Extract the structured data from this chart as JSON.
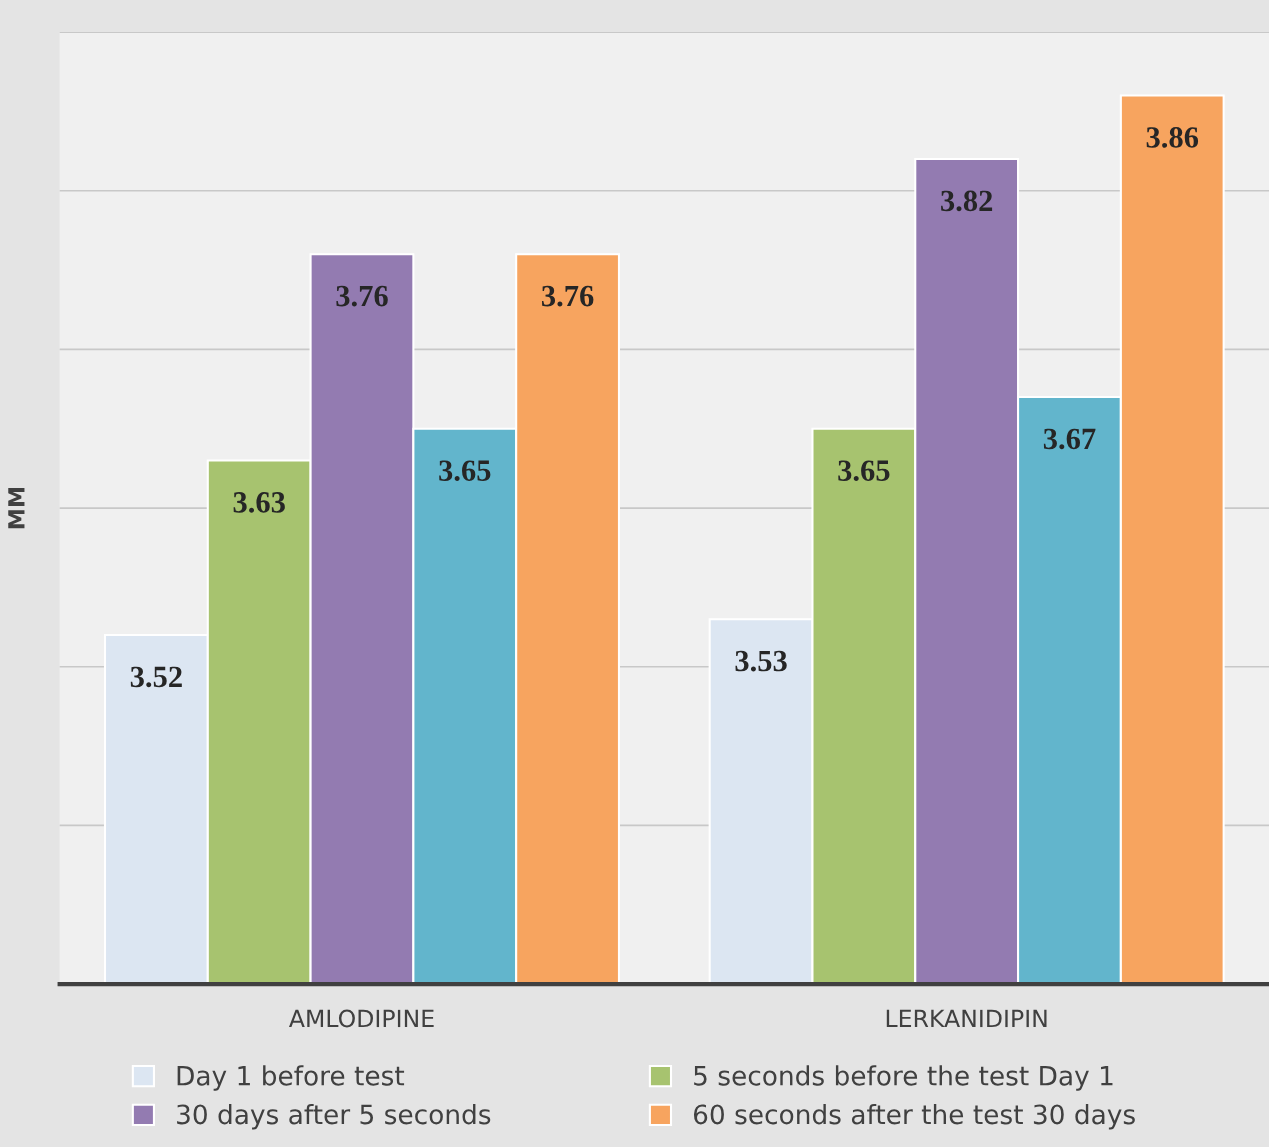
{
  "chart_data": {
    "type": "bar",
    "ylabel": "MM",
    "categories": [
      "AMLODIPINE",
      "LERKANIDIPIN"
    ],
    "series": [
      {
        "name": "Day 1 before test",
        "color": "#dce6f2",
        "values": [
          3.52,
          3.53
        ]
      },
      {
        "name": "5 seconds before the test Day 1",
        "color": "#a7c36f",
        "values": [
          3.63,
          3.65
        ]
      },
      {
        "name": "30 days after 5 seconds",
        "color": "#937bb1",
        "values": [
          3.76,
          3.82
        ]
      },
      {
        "color": "#62b5cc",
        "values": [
          3.65,
          3.67
        ]
      },
      {
        "name": "60 seconds after the test 30 days",
        "color": "#f7a45f",
        "values": [
          3.76,
          3.86
        ]
      }
    ],
    "ylim": [
      3.3,
      3.9
    ],
    "yticks": [
      {
        "value": 3.3,
        "label": null
      },
      {
        "value": 3.4,
        "label": null
      },
      {
        "value": 3.5,
        "label": null
      },
      {
        "value": 3.6,
        "label": null
      },
      {
        "value": 3.7,
        "label": null
      },
      {
        "value": 3.8,
        "label": null
      },
      {
        "value": 3.9,
        "label": null
      }
    ],
    "grid": "y",
    "legend": "bottom",
    "data_labels": true
  }
}
